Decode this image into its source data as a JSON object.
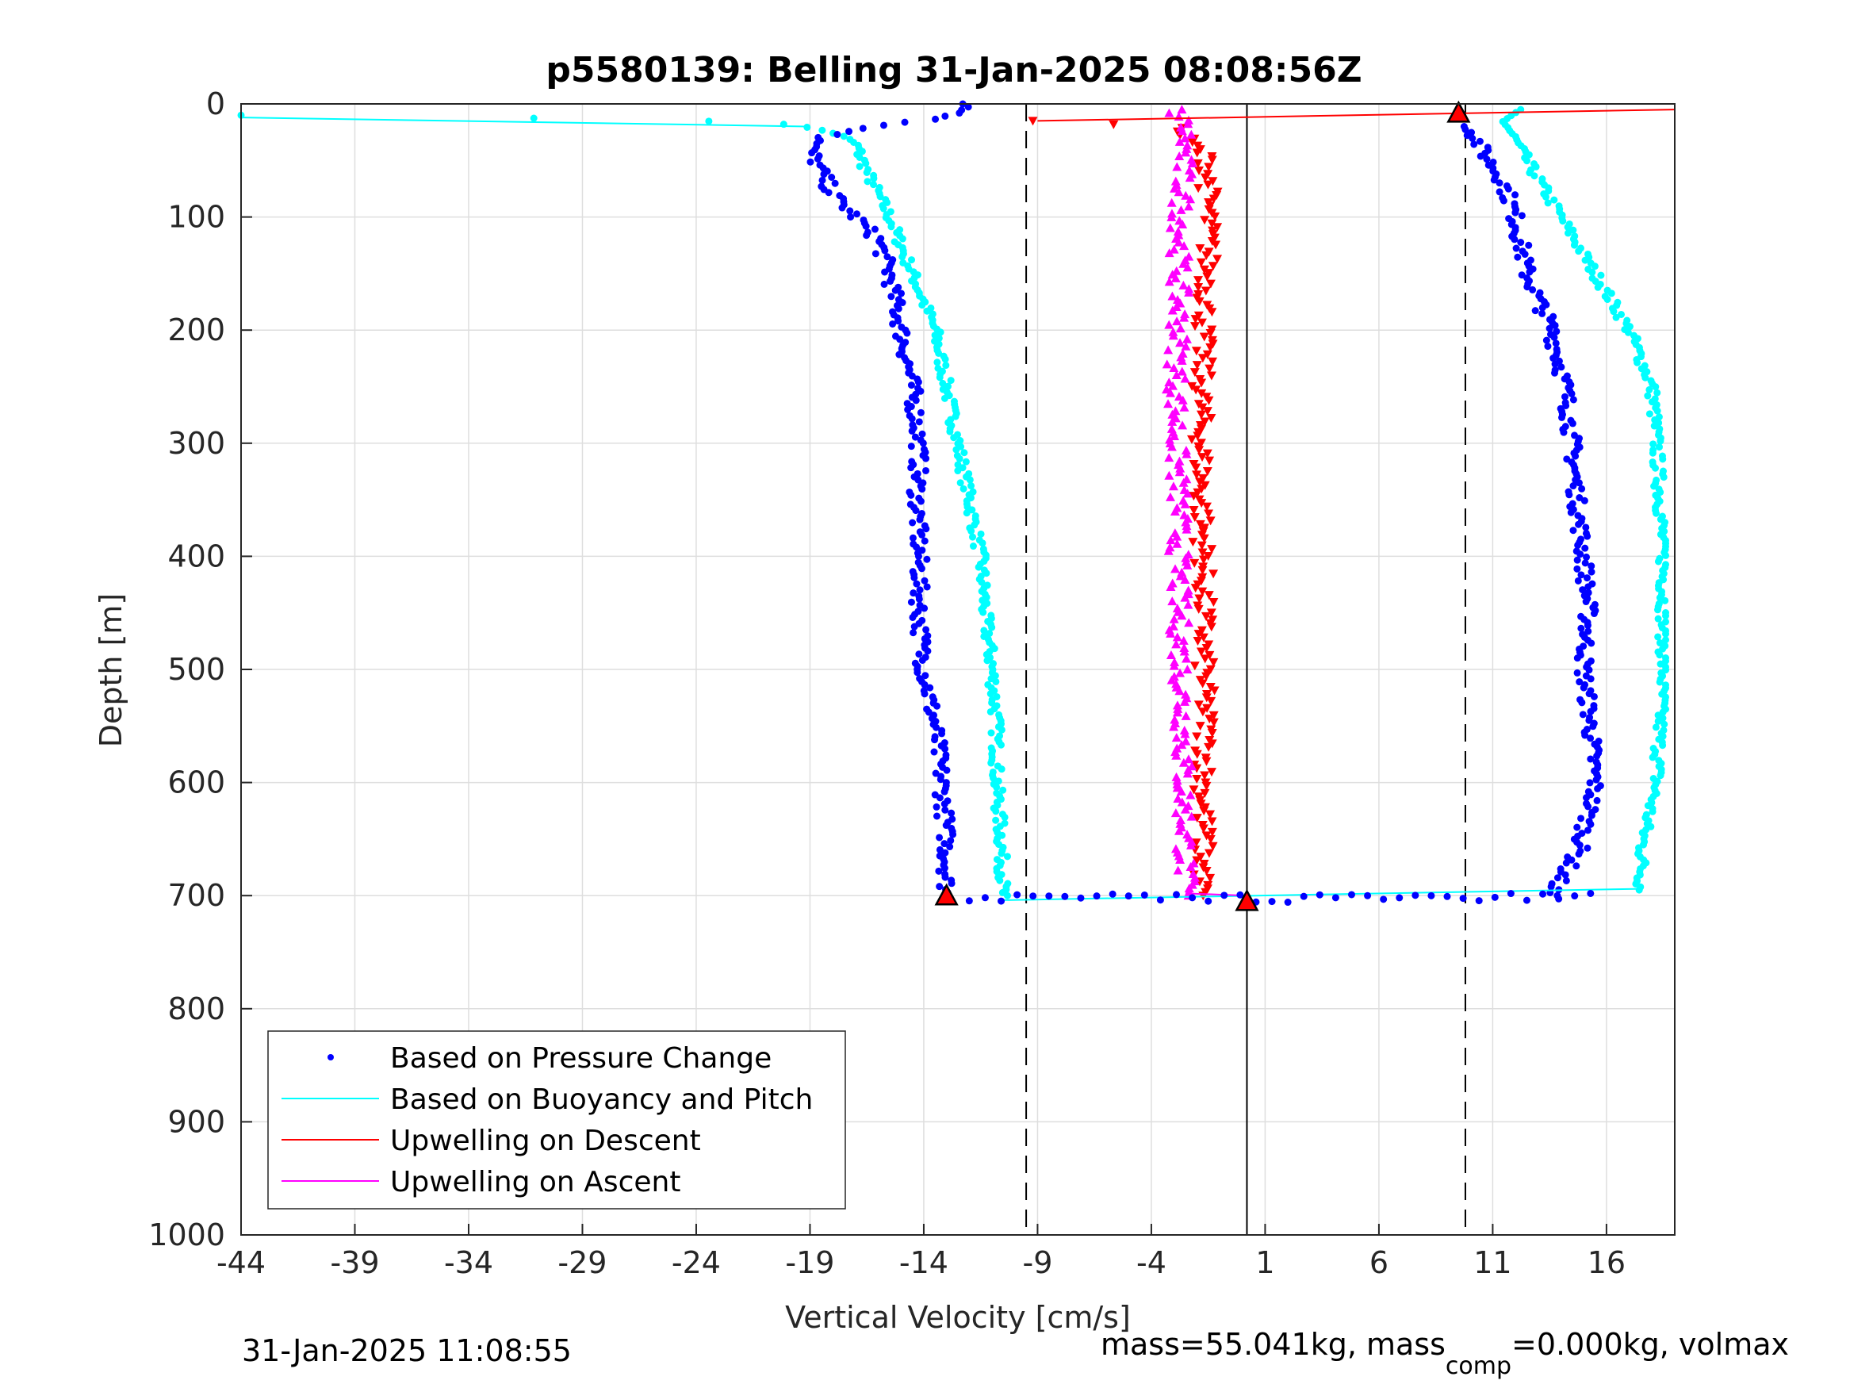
{
  "chart_data": {
    "type": "scatter",
    "title": "p5580139: Belling 31-Jan-2025 08:08:56Z",
    "xlabel": "Vertical Velocity [cm/s]",
    "ylabel": "Depth [m]",
    "xlim": [
      -44,
      19
    ],
    "ylim": [
      0,
      1000
    ],
    "y_reversed": true,
    "xticks": [
      -44,
      -39,
      -34,
      -29,
      -24,
      -19,
      -14,
      -9,
      -4,
      1,
      6,
      11,
      16
    ],
    "yticks": [
      0,
      100,
      200,
      300,
      400,
      500,
      600,
      700,
      800,
      900,
      1000
    ],
    "grid": true,
    "legend_placement": "bottom-left",
    "legend": [
      {
        "label": "Based on Pressure Change",
        "style": "dot",
        "color": "#0000ff"
      },
      {
        "label": "Based on Buoyancy and Pitch",
        "style": "line",
        "color": "#00ffff"
      },
      {
        "label": "Upwelling on Descent",
        "style": "line",
        "color": "#ff0000"
      },
      {
        "label": "Upwelling on Ascent",
        "style": "line",
        "color": "#ff00ff"
      }
    ],
    "reference_lines": {
      "dashed_x": [
        -9.5,
        9.8
      ],
      "solid_x": [
        0.2
      ]
    },
    "series": [
      {
        "name": "Based on Pressure Change",
        "segment": "descent",
        "color": "#0000ff",
        "profile": [
          [
            0,
            -12
          ],
          [
            10,
            -12.5
          ],
          [
            20,
            -16
          ],
          [
            30,
            -18.5
          ],
          [
            40,
            -19
          ],
          [
            60,
            -18.5
          ],
          [
            80,
            -18
          ],
          [
            100,
            -17
          ],
          [
            120,
            -16
          ],
          [
            150,
            -15.5
          ],
          [
            200,
            -15
          ],
          [
            250,
            -14.5
          ],
          [
            300,
            -14.2
          ],
          [
            350,
            -14.3
          ],
          [
            400,
            -14.2
          ],
          [
            450,
            -14.2
          ],
          [
            500,
            -14
          ],
          [
            550,
            -13.5
          ],
          [
            600,
            -13.2
          ],
          [
            650,
            -13
          ],
          [
            700,
            -13
          ]
        ]
      },
      {
        "name": "Based on Buoyancy and Pitch",
        "segment": "descent",
        "color": "#00ffff",
        "profile": [
          [
            10,
            -44
          ],
          [
            14,
            -25
          ],
          [
            18,
            -20
          ],
          [
            25,
            -18
          ],
          [
            35,
            -17
          ],
          [
            60,
            -16.5
          ],
          [
            100,
            -15.5
          ],
          [
            150,
            -14.5
          ],
          [
            200,
            -13.5
          ],
          [
            250,
            -13
          ],
          [
            300,
            -12.5
          ],
          [
            350,
            -12
          ],
          [
            400,
            -11.5
          ],
          [
            450,
            -11.3
          ],
          [
            500,
            -11
          ],
          [
            550,
            -10.8
          ],
          [
            600,
            -10.8
          ],
          [
            650,
            -10.6
          ],
          [
            700,
            -10.5
          ]
        ]
      },
      {
        "name": "Based on Pressure Change",
        "segment": "ascent",
        "color": "#0000ff",
        "profile": [
          [
            700,
            13.5
          ],
          [
            660,
            14.8
          ],
          [
            620,
            15.3
          ],
          [
            600,
            15.5
          ],
          [
            550,
            15.3
          ],
          [
            500,
            15
          ],
          [
            450,
            15.2
          ],
          [
            400,
            15
          ],
          [
            350,
            14.7
          ],
          [
            300,
            14.5
          ],
          [
            250,
            14.2
          ],
          [
            200,
            13.6
          ],
          [
            150,
            12.5
          ],
          [
            100,
            12
          ],
          [
            70,
            11.5
          ],
          [
            40,
            10.5
          ],
          [
            20,
            10
          ]
        ]
      },
      {
        "name": "Based on Buoyancy and Pitch",
        "segment": "ascent",
        "color": "#00ffff",
        "profile": [
          [
            695,
            17.5
          ],
          [
            650,
            17.6
          ],
          [
            600,
            18.2
          ],
          [
            500,
            18.5
          ],
          [
            400,
            18.5
          ],
          [
            300,
            18.2
          ],
          [
            250,
            18
          ],
          [
            200,
            17
          ],
          [
            150,
            15.5
          ],
          [
            100,
            14
          ],
          [
            50,
            12.5
          ],
          [
            15,
            11.5
          ],
          [
            5,
            12
          ]
        ]
      },
      {
        "name": "Upwelling on Descent",
        "color": "#ff0000",
        "profile": [
          [
            15,
            -9
          ],
          [
            20,
            -3
          ],
          [
            50,
            -1.5
          ],
          [
            100,
            -1.5
          ],
          [
            150,
            -1.5
          ],
          [
            200,
            -1.7
          ],
          [
            250,
            -1.8
          ],
          [
            300,
            -1.8
          ],
          [
            350,
            -1.8
          ],
          [
            400,
            -1.7
          ],
          [
            450,
            -1.7
          ],
          [
            500,
            -1.7
          ],
          [
            550,
            -1.6
          ],
          [
            600,
            -1.7
          ],
          [
            650,
            -1.7
          ],
          [
            700,
            -1.8
          ]
        ]
      },
      {
        "name": "Upwelling on Ascent",
        "color": "#ff00ff",
        "profile": [
          [
            700,
            -2.5
          ],
          [
            650,
            -2.5
          ],
          [
            600,
            -2.6
          ],
          [
            550,
            -2.6
          ],
          [
            500,
            -2.7
          ],
          [
            450,
            -2.8
          ],
          [
            400,
            -2.8
          ],
          [
            350,
            -2.8
          ],
          [
            300,
            -2.9
          ],
          [
            250,
            -2.9
          ],
          [
            200,
            -2.8
          ],
          [
            150,
            -2.8
          ],
          [
            100,
            -2.7
          ],
          [
            50,
            -2.6
          ],
          [
            20,
            -2.5
          ],
          [
            5,
            -3
          ]
        ]
      }
    ],
    "markers": [
      {
        "kind": "dive-start",
        "x": 9.5,
        "y": 8
      },
      {
        "kind": "apogee",
        "x": 0.2,
        "y": 705
      },
      {
        "kind": "turn",
        "x": -13,
        "y": 700
      }
    ],
    "footer_left": "31-Jan-2025 11:08:55",
    "footer_right": {
      "pre": "mass=55.041kg, mass",
      "sub": "comp",
      "post": "=0.000kg, volmax"
    }
  }
}
